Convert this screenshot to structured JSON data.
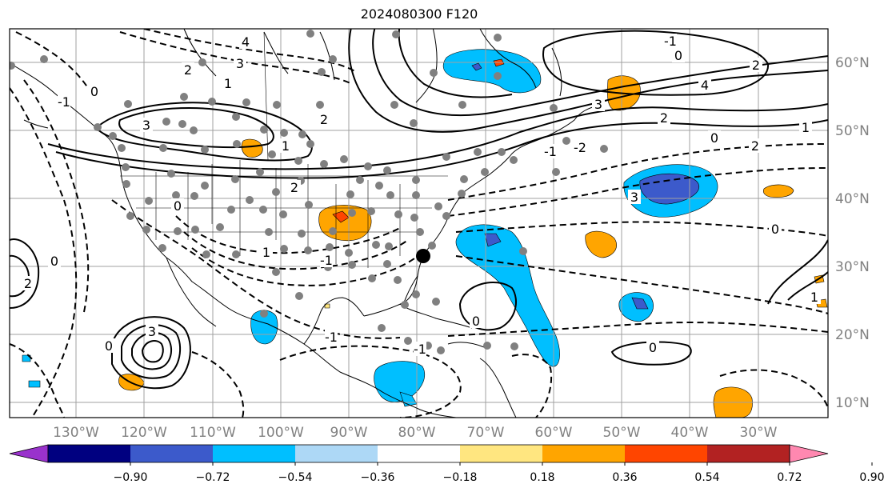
{
  "title": "2024080300 F120",
  "map": {
    "lon_labels": [
      "130°W",
      "120°W",
      "110°W",
      "100°W",
      "90°W",
      "80°W",
      "70°W",
      "60°W",
      "50°W",
      "40°W",
      "30°W"
    ],
    "lat_labels": [
      "60°N",
      "50°N",
      "40°N",
      "30°N",
      "20°N",
      "10°N"
    ],
    "contour_labels": [
      "4",
      "3",
      "2",
      "1",
      "0",
      "-1",
      "2",
      "3",
      "1",
      "0",
      "2",
      "4",
      "2",
      "0",
      "-1",
      "3",
      "2",
      "1",
      "0",
      "3",
      "-1",
      "2",
      "-2",
      "-1",
      "0",
      "1",
      "-1",
      "0",
      "3",
      "2",
      "-1",
      "0",
      "-1",
      "0",
      "1",
      "0"
    ],
    "grid_color": "#a0a0a0",
    "coast_color": "#000000"
  },
  "colorbar": {
    "colors": [
      "#9932cc",
      "#000080",
      "#3c5acb",
      "#00bfff",
      "#add8f6",
      "#ffffff",
      "#ffe680",
      "#ffa500",
      "#ff4500",
      "#b22222",
      "#ff88b0"
    ],
    "tick_labels": [
      "−0.90",
      "−0.72",
      "−0.54",
      "−0.36",
      "−0.18",
      "0.18",
      "0.36",
      "0.54",
      "0.72",
      "0.90"
    ]
  },
  "markers": {
    "point_color": "#808080",
    "highlight_color": "#000000"
  }
}
